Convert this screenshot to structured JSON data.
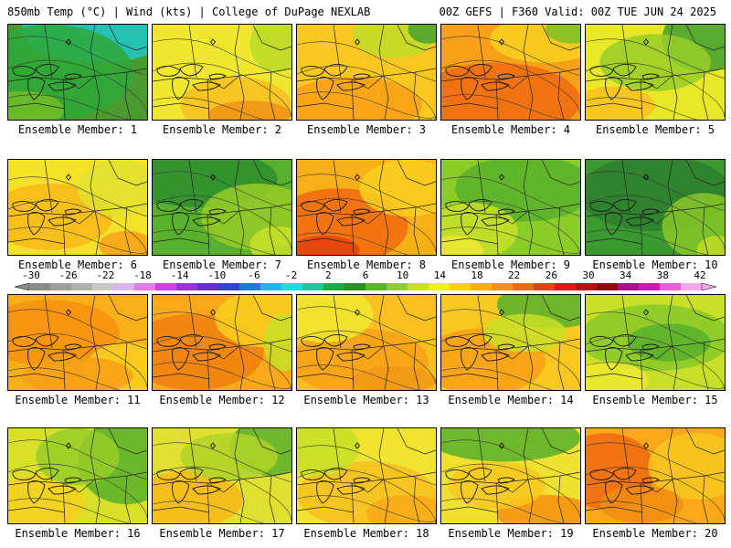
{
  "header": {
    "left": "850mb Temp (°C) | Wind (kts) | College of DuPage NEXLAB",
    "right": "00Z GEFS | F360 Valid: 00Z TUE JUN 24 2025"
  },
  "colorbar": {
    "labels": [
      "-30",
      "-26",
      "-22",
      "-18",
      "-14",
      "-10",
      "-6",
      "-2",
      "2",
      "6",
      "10",
      "14",
      "18",
      "22",
      "26",
      "30",
      "34",
      "38",
      "42"
    ],
    "colors": [
      "#8a8a8a",
      "#9d9d9d",
      "#b0b0b0",
      "#c8c8c8",
      "#d9b6e8",
      "#e27ae8",
      "#d040e0",
      "#9a30d8",
      "#6a2ad8",
      "#3240d8",
      "#1e78e8",
      "#1ab8f0",
      "#22d8d8",
      "#20c898",
      "#1ea848",
      "#2e8e2e",
      "#58b428",
      "#8ed020",
      "#c8e020",
      "#f0f020",
      "#f8d018",
      "#f8b010",
      "#f89010",
      "#f06a10",
      "#e84010",
      "#e01818",
      "#b81010",
      "#900c0c",
      "#a8108a",
      "#d018b0",
      "#e860d8",
      "#f0a8e8"
    ]
  },
  "panels": [
    {
      "label": "Ensemble Member: 1",
      "base": "#4a9a30",
      "blobs": [
        [
          "#1ec8c8",
          0.65,
          0.05,
          0.55,
          0.35
        ],
        [
          "#2ea838",
          0.3,
          0.5,
          0.6,
          0.5
        ],
        [
          "#74bc26",
          0.1,
          0.9,
          0.3,
          0.2
        ]
      ]
    },
    {
      "label": "Ensemble Member: 2",
      "base": "#f0e830",
      "blobs": [
        [
          "#f8c020",
          0.6,
          0.85,
          0.4,
          0.3
        ],
        [
          "#f09018",
          0.7,
          0.95,
          0.3,
          0.15
        ],
        [
          "#b8da28",
          0.9,
          0.2,
          0.2,
          0.3
        ]
      ]
    },
    {
      "label": "Ensemble Member: 3",
      "base": "#f8c820",
      "blobs": [
        [
          "#f8a018",
          0.4,
          0.85,
          0.5,
          0.3
        ],
        [
          "#c0dc28",
          0.7,
          0.1,
          0.3,
          0.25
        ],
        [
          "#4aa030",
          0.95,
          0.05,
          0.15,
          0.15
        ]
      ]
    },
    {
      "label": "Ensemble Member: 4",
      "base": "#f8a018",
      "blobs": [
        [
          "#f06a10",
          0.4,
          0.8,
          0.6,
          0.4
        ],
        [
          "#f8d020",
          0.75,
          0.15,
          0.4,
          0.25
        ],
        [
          "#7ac026",
          0.95,
          0.05,
          0.2,
          0.15
        ]
      ]
    },
    {
      "label": "Ensemble Member: 5",
      "base": "#e8e828",
      "blobs": [
        [
          "#3ea030",
          0.85,
          0.15,
          0.3,
          0.35
        ],
        [
          "#98cc28",
          0.5,
          0.4,
          0.4,
          0.3
        ],
        [
          "#f8c020",
          0.2,
          0.85,
          0.3,
          0.2
        ]
      ]
    },
    {
      "label": "Ensemble Member: 6",
      "base": "#f4e228",
      "blobs": [
        [
          "#f8b818",
          0.3,
          0.6,
          0.45,
          0.35
        ],
        [
          "#e0e030",
          0.8,
          0.3,
          0.3,
          0.3
        ],
        [
          "#f8a018",
          0.85,
          0.9,
          0.2,
          0.15
        ]
      ]
    },
    {
      "label": "Ensemble Member: 7",
      "base": "#58b02c",
      "blobs": [
        [
          "#2e8e2e",
          0.35,
          0.2,
          0.55,
          0.3
        ],
        [
          "#98cc28",
          0.75,
          0.6,
          0.4,
          0.35
        ],
        [
          "#c8e028",
          0.9,
          0.9,
          0.2,
          0.2
        ]
      ]
    },
    {
      "label": "Ensemble Member: 8",
      "base": "#f8b018",
      "blobs": [
        [
          "#f06a10",
          0.3,
          0.7,
          0.5,
          0.4
        ],
        [
          "#e84010",
          0.2,
          0.95,
          0.25,
          0.15
        ],
        [
          "#f8d020",
          0.8,
          0.3,
          0.35,
          0.3
        ]
      ]
    },
    {
      "label": "Ensemble Member: 9",
      "base": "#8ccc28",
      "blobs": [
        [
          "#58b02c",
          0.6,
          0.3,
          0.5,
          0.35
        ],
        [
          "#c8e028",
          0.2,
          0.75,
          0.35,
          0.3
        ],
        [
          "#f0e830",
          0.1,
          0.95,
          0.2,
          0.15
        ]
      ]
    },
    {
      "label": "Ensemble Member: 10",
      "base": "#3a9a30",
      "blobs": [
        [
          "#2e7e2e",
          0.5,
          0.35,
          0.55,
          0.4
        ],
        [
          "#88c828",
          0.85,
          0.7,
          0.3,
          0.35
        ],
        [
          "#c0dc28",
          0.95,
          0.95,
          0.15,
          0.15
        ]
      ]
    },
    {
      "label": "Ensemble Member: 11",
      "base": "#f8b018",
      "blobs": [
        [
          "#f89010",
          0.3,
          0.4,
          0.5,
          0.35
        ],
        [
          "#f8d020",
          0.85,
          0.8,
          0.3,
          0.3
        ],
        [
          "#f8a018",
          0.5,
          0.85,
          0.4,
          0.2
        ]
      ]
    },
    {
      "label": "Ensemble Member: 12",
      "base": "#f8a818",
      "blobs": [
        [
          "#f08010",
          0.3,
          0.6,
          0.5,
          0.4
        ],
        [
          "#f8d020",
          0.8,
          0.25,
          0.35,
          0.3
        ],
        [
          "#c8e028",
          0.95,
          0.5,
          0.15,
          0.3
        ]
      ]
    },
    {
      "label": "Ensemble Member: 13",
      "base": "#f8c020",
      "blobs": [
        [
          "#f8a018",
          0.45,
          0.7,
          0.5,
          0.35
        ],
        [
          "#f0e830",
          0.2,
          0.2,
          0.35,
          0.3
        ],
        [
          "#f09818",
          0.7,
          0.9,
          0.3,
          0.15
        ]
      ]
    },
    {
      "label": "Ensemble Member: 14",
      "base": "#f8c820",
      "blobs": [
        [
          "#58b02c",
          0.8,
          0.1,
          0.4,
          0.25
        ],
        [
          "#f8a018",
          0.3,
          0.7,
          0.45,
          0.35
        ],
        [
          "#c8e028",
          0.6,
          0.4,
          0.3,
          0.2
        ]
      ]
    },
    {
      "label": "Ensemble Member: 15",
      "base": "#c8e028",
      "blobs": [
        [
          "#88c828",
          0.5,
          0.45,
          0.55,
          0.35
        ],
        [
          "#58b02c",
          0.6,
          0.5,
          0.3,
          0.2
        ],
        [
          "#f0e830",
          0.15,
          0.9,
          0.3,
          0.2
        ]
      ]
    },
    {
      "label": "Ensemble Member: 16",
      "base": "#d8e028",
      "blobs": [
        [
          "#58b02c",
          0.85,
          0.35,
          0.35,
          0.45
        ],
        [
          "#f8d020",
          0.2,
          0.8,
          0.35,
          0.3
        ],
        [
          "#98cc28",
          0.5,
          0.3,
          0.3,
          0.3
        ]
      ]
    },
    {
      "label": "Ensemble Member: 17",
      "base": "#e0e030",
      "blobs": [
        [
          "#58b02c",
          0.85,
          0.2,
          0.3,
          0.3
        ],
        [
          "#f8b818",
          0.25,
          0.75,
          0.4,
          0.3
        ],
        [
          "#b0d428",
          0.55,
          0.3,
          0.35,
          0.25
        ]
      ]
    },
    {
      "label": "Ensemble Member: 18",
      "base": "#f0e430",
      "blobs": [
        [
          "#f8c020",
          0.5,
          0.7,
          0.5,
          0.35
        ],
        [
          "#c8e028",
          0.15,
          0.2,
          0.3,
          0.3
        ],
        [
          "#f8a818",
          0.8,
          0.9,
          0.3,
          0.2
        ]
      ]
    },
    {
      "label": "Ensemble Member: 19",
      "base": "#f0e030",
      "blobs": [
        [
          "#58b02c",
          0.45,
          0.1,
          0.55,
          0.25
        ],
        [
          "#f89010",
          0.75,
          0.9,
          0.35,
          0.2
        ],
        [
          "#f8c820",
          0.4,
          0.6,
          0.35,
          0.25
        ]
      ]
    },
    {
      "label": "Ensemble Member: 20",
      "base": "#f8a818",
      "blobs": [
        [
          "#f06a10",
          0.15,
          0.45,
          0.35,
          0.4
        ],
        [
          "#f8c820",
          0.8,
          0.4,
          0.35,
          0.35
        ],
        [
          "#f08c10",
          0.4,
          0.8,
          0.3,
          0.2
        ]
      ]
    }
  ]
}
